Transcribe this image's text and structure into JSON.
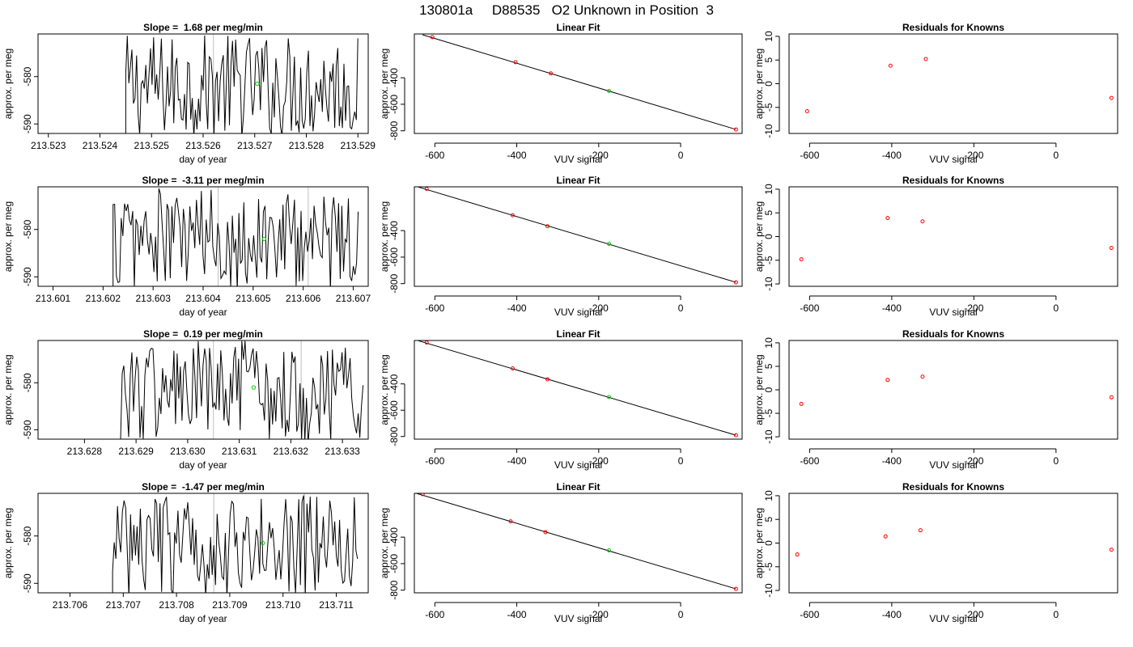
{
  "page_title": "130801a     D88535   O2 Unknown in Position  3",
  "colors": {
    "line": "#000000",
    "frame": "#000000",
    "vline": "#bebebe",
    "known_point": "#ff0000",
    "unknown_point": "#00cd00"
  },
  "chart_data": [
    {
      "type": "line",
      "row": 0,
      "title_prefix": "Slope = ",
      "slope": "1.68",
      "title_suffix": " per meg/min",
      "xlabel": "day of year",
      "ylabel": "approx. per meg",
      "xlim": [
        213.5228,
        213.5292
      ],
      "ylim": [
        -592,
        -571
      ],
      "xticks": [
        "213.523",
        "213.524",
        "213.525",
        "213.526",
        "213.527",
        "213.528",
        "213.529"
      ],
      "yticks": [
        -580,
        -590
      ],
      "gray_vlines": [
        213.5262
      ],
      "unknown_point": {
        "x": 213.52705,
        "y": -581.5
      },
      "trace_start": 213.5245,
      "trace_end": 213.529
    },
    {
      "type": "scatter",
      "row": 0,
      "title": "Linear Fit",
      "xlabel": "VUV signal",
      "ylabel": "approx. per meg",
      "xlim": [
        -650,
        150
      ],
      "ylim": [
        -820,
        -70
      ],
      "xticks": [
        -600,
        -400,
        -200,
        0
      ],
      "yticks": [
        -400,
        -600,
        -800
      ],
      "fit_line": {
        "x1": -630,
        "y1": -76,
        "x2": 135,
        "y2": -790
      },
      "knowns": [
        {
          "x": -606,
          "y": -94
        },
        {
          "x": -403,
          "y": -283
        },
        {
          "x": -317,
          "y": -367
        },
        {
          "x": 135,
          "y": -790
        }
      ],
      "unknown": {
        "x": -175,
        "y": -500
      }
    },
    {
      "type": "scatter",
      "row": 0,
      "title": "Residuals for Knowns",
      "xlabel": "VUV signal",
      "ylabel": "approx. per meg",
      "xlim": [
        -650,
        150
      ],
      "ylim": [
        -10.5,
        10.5
      ],
      "xticks": [
        -600,
        -400,
        -200,
        0
      ],
      "yticks": [
        10,
        5,
        0,
        -5,
        -10
      ],
      "knowns": [
        {
          "x": -606,
          "y": -5.8
        },
        {
          "x": -403,
          "y": 3.8
        },
        {
          "x": -317,
          "y": 5.2
        },
        {
          "x": 135,
          "y": -3.0
        }
      ]
    },
    {
      "type": "line",
      "row": 1,
      "title_prefix": "Slope = ",
      "slope": "-3.11",
      "title_suffix": " per meg/min",
      "xlabel": "day of year",
      "ylabel": "approx. per meg",
      "xlim": [
        213.6007,
        213.6073
      ],
      "ylim": [
        -592,
        -571
      ],
      "xticks": [
        "213.601",
        "213.602",
        "213.603",
        "213.604",
        "213.605",
        "213.606",
        "213.607"
      ],
      "yticks": [
        -580,
        -590
      ],
      "gray_vlines": [
        213.6043,
        213.6061
      ],
      "unknown_point": {
        "x": 213.60522,
        "y": -582.0
      },
      "trace_start": 213.6022,
      "trace_end": 213.6071
    },
    {
      "type": "scatter",
      "row": 1,
      "title": "Linear Fit",
      "xlabel": "VUV signal",
      "ylabel": "approx. per meg",
      "xlim": [
        -650,
        150
      ],
      "ylim": [
        -820,
        -70
      ],
      "xticks": [
        -600,
        -400,
        -200,
        0
      ],
      "yticks": [
        -400,
        -600,
        -800
      ],
      "fit_line": {
        "x1": -640,
        "y1": -72,
        "x2": 135,
        "y2": -790
      },
      "knowns": [
        {
          "x": -620,
          "y": -85
        },
        {
          "x": -410,
          "y": -284
        },
        {
          "x": -325,
          "y": -367
        },
        {
          "x": 135,
          "y": -790
        }
      ],
      "unknown": {
        "x": -175,
        "y": -500
      }
    },
    {
      "type": "scatter",
      "row": 1,
      "title": "Residuals for Knowns",
      "xlabel": "VUV signal",
      "ylabel": "approx. per meg",
      "xlim": [
        -650,
        150
      ],
      "ylim": [
        -10.5,
        10.5
      ],
      "xticks": [
        -600,
        -400,
        -200,
        0
      ],
      "yticks": [
        10,
        5,
        0,
        -5,
        -10
      ],
      "knowns": [
        {
          "x": -620,
          "y": -4.8
        },
        {
          "x": -410,
          "y": 3.9
        },
        {
          "x": -325,
          "y": 3.2
        },
        {
          "x": 135,
          "y": -2.4
        }
      ]
    },
    {
      "type": "line",
      "row": 2,
      "title_prefix": "Slope = ",
      "slope": "0.19",
      "title_suffix": " per meg/min",
      "xlabel": "day of year",
      "ylabel": "approx. per meg",
      "xlim": [
        213.6271,
        213.6335
      ],
      "ylim": [
        -592,
        -571
      ],
      "xticks": [
        "213.628",
        "213.629",
        "213.630",
        "213.631",
        "213.632",
        "213.633"
      ],
      "yticks": [
        -580,
        -590
      ],
      "gray_vlines": [
        213.6305,
        213.6322
      ],
      "unknown_point": {
        "x": 213.63128,
        "y": -581.0
      },
      "trace_start": 213.6287,
      "trace_end": 213.6334
    },
    {
      "type": "scatter",
      "row": 2,
      "title": "Linear Fit",
      "xlabel": "VUV signal",
      "ylabel": "approx. per meg",
      "xlim": [
        -650,
        150
      ],
      "ylim": [
        -820,
        -70
      ],
      "xticks": [
        -600,
        -400,
        -200,
        0
      ],
      "yticks": [
        -400,
        -600,
        -800
      ],
      "fit_line": {
        "x1": -640,
        "y1": -72,
        "x2": 135,
        "y2": -790
      },
      "knowns": [
        {
          "x": -620,
          "y": -85
        },
        {
          "x": -410,
          "y": -282
        },
        {
          "x": -325,
          "y": -365
        },
        {
          "x": 135,
          "y": -790
        }
      ],
      "unknown": {
        "x": -175,
        "y": -500
      }
    },
    {
      "type": "scatter",
      "row": 2,
      "title": "Residuals for Knowns",
      "xlabel": "VUV signal",
      "ylabel": "approx. per meg",
      "xlim": [
        -650,
        150
      ],
      "ylim": [
        -10.5,
        10.5
      ],
      "xticks": [
        -600,
        -400,
        -200,
        0
      ],
      "yticks": [
        10,
        5,
        0,
        -5,
        -10
      ],
      "knowns": [
        {
          "x": -620,
          "y": -3.0
        },
        {
          "x": -410,
          "y": 2.1
        },
        {
          "x": -325,
          "y": 2.8
        },
        {
          "x": 135,
          "y": -1.6
        }
      ]
    },
    {
      "type": "line",
      "row": 3,
      "title_prefix": "Slope = ",
      "slope": "-1.47",
      "title_suffix": " per meg/min",
      "xlabel": "day of year",
      "ylabel": "approx. per meg",
      "xlim": [
        213.7054,
        213.7116
      ],
      "ylim": [
        -592,
        -571
      ],
      "xticks": [
        "213.706",
        "213.707",
        "213.708",
        "213.709",
        "213.710",
        "213.711"
      ],
      "yticks": [
        -580,
        -590
      ],
      "gray_vlines": [
        213.7087,
        213.7104
      ],
      "unknown_point": {
        "x": 213.70962,
        "y": -581.5
      },
      "trace_start": 213.7068,
      "trace_end": 213.7114
    },
    {
      "type": "scatter",
      "row": 3,
      "title": "Linear Fit",
      "xlabel": "VUV signal",
      "ylabel": "approx. per meg",
      "xlim": [
        -650,
        150
      ],
      "ylim": [
        -820,
        -70
      ],
      "xticks": [
        -600,
        -400,
        -200,
        0
      ],
      "yticks": [
        -400,
        -600,
        -800
      ],
      "fit_line": {
        "x1": -645,
        "y1": -70,
        "x2": 135,
        "y2": -790
      },
      "knowns": [
        {
          "x": -630,
          "y": -76
        },
        {
          "x": -415,
          "y": -281
        },
        {
          "x": -330,
          "y": -363
        },
        {
          "x": 135,
          "y": -790
        }
      ],
      "unknown": {
        "x": -175,
        "y": -500
      }
    },
    {
      "type": "scatter",
      "row": 3,
      "title": "Residuals for Knowns",
      "xlabel": "VUV signal",
      "ylabel": "approx. per meg",
      "xlim": [
        -650,
        150
      ],
      "ylim": [
        -10.5,
        10.5
      ],
      "xticks": [
        -600,
        -400,
        -200,
        0
      ],
      "yticks": [
        10,
        5,
        0,
        -5,
        -10
      ],
      "knowns": [
        {
          "x": -630,
          "y": -2.4
        },
        {
          "x": -415,
          "y": 1.4
        },
        {
          "x": -330,
          "y": 2.7
        },
        {
          "x": 135,
          "y": -1.4
        }
      ]
    }
  ]
}
